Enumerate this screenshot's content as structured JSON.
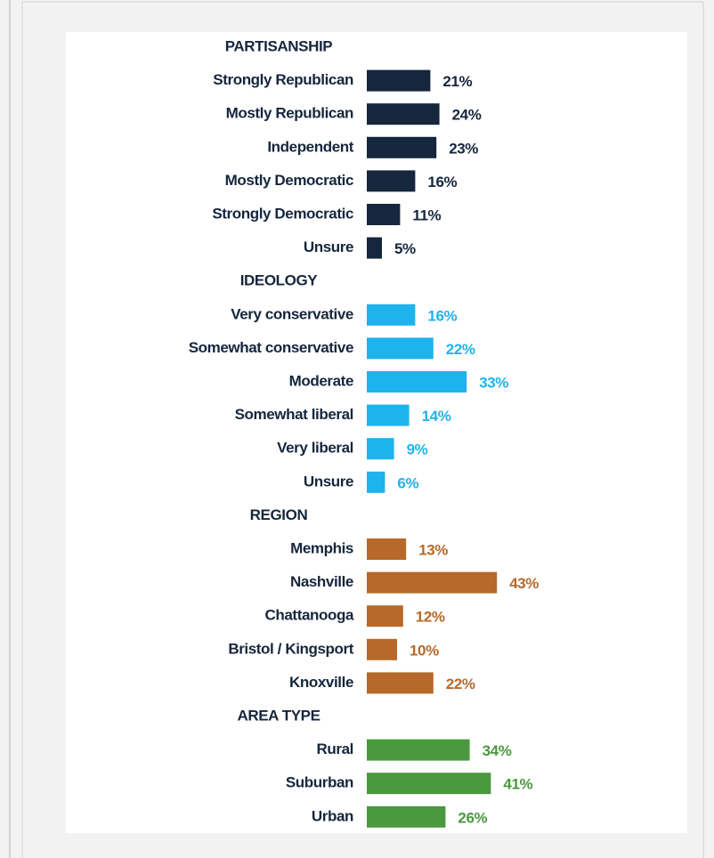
{
  "chart_data": [
    {
      "type": "bar",
      "title": "PARTISANSHIP",
      "categories": [
        "Strongly Republican",
        "Mostly Republican",
        "Independent",
        "Mostly Democratic",
        "Strongly Democratic",
        "Unsure"
      ],
      "values": [
        21,
        24,
        23,
        16,
        11,
        5
      ],
      "value_labels": [
        "21%",
        "24%",
        "23%",
        "16%",
        "11%",
        "5%"
      ],
      "color": "#15263d"
    },
    {
      "type": "bar",
      "title": "IDEOLOGY",
      "categories": [
        "Very conservative",
        "Somewhat conservative",
        "Moderate",
        "Somewhat liberal",
        "Very liberal",
        "Unsure"
      ],
      "values": [
        16,
        22,
        33,
        14,
        9,
        6
      ],
      "value_labels": [
        "16%",
        "22%",
        "33%",
        "14%",
        "9%",
        "6%"
      ],
      "color": "#1fb3ee"
    },
    {
      "type": "bar",
      "title": "REGION",
      "categories": [
        "Memphis",
        "Nashville",
        "Chattanooga",
        "Bristol / Kingsport",
        "Knoxville"
      ],
      "values": [
        13,
        43,
        12,
        10,
        22
      ],
      "value_labels": [
        "13%",
        "43%",
        "12%",
        "10%",
        "22%"
      ],
      "color": "#b6692a"
    },
    {
      "type": "bar",
      "title": "AREA TYPE",
      "categories": [
        "Rural",
        "Suburban",
        "Urban"
      ],
      "values": [
        34,
        41,
        26
      ],
      "value_labels": [
        "34%",
        "41%",
        "26%"
      ],
      "color": "#4a993f"
    }
  ]
}
